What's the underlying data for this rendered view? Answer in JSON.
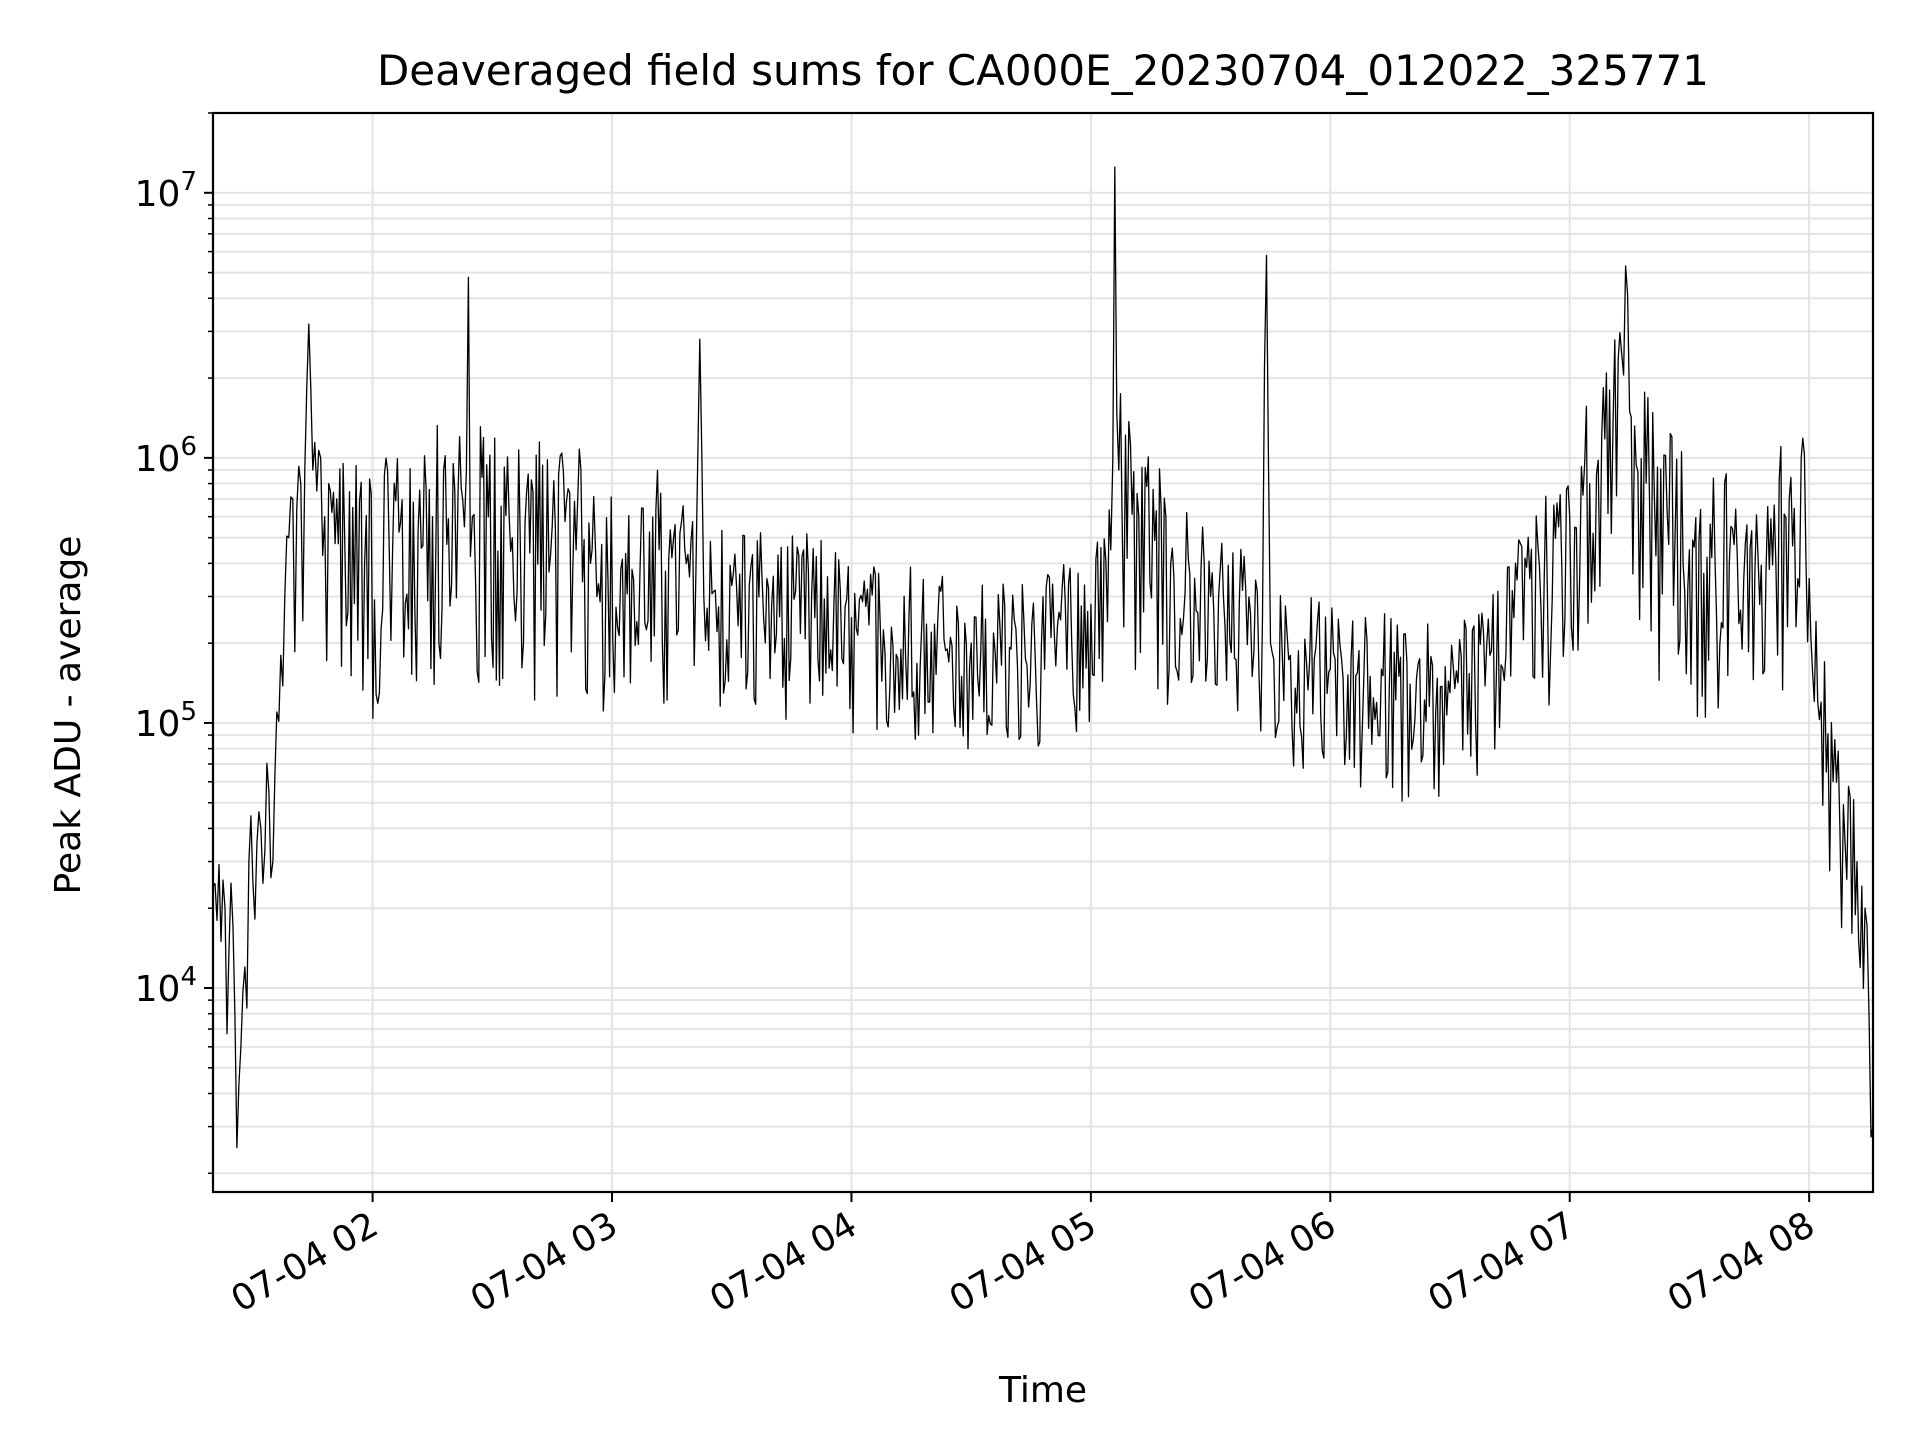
{
  "chart_data": {
    "type": "line",
    "title": "Deaveraged field sums for CA000E_20230704_012022_325771",
    "xlabel": "Time",
    "ylabel": "Peak ADU - average",
    "yscale": "log",
    "xlim": [
      "2023-07-04 01:20",
      "2023-07-04 08:16"
    ],
    "ylim": [
      1700,
      20000000
    ],
    "grid": true,
    "legend": "none",
    "line_color": "#000000",
    "x_ticks": [
      {
        "time": "2023-07-04 02:00",
        "label": "07-04 02"
      },
      {
        "time": "2023-07-04 03:00",
        "label": "07-04 03"
      },
      {
        "time": "2023-07-04 04:00",
        "label": "07-04 04"
      },
      {
        "time": "2023-07-04 05:00",
        "label": "07-04 05"
      },
      {
        "time": "2023-07-04 06:00",
        "label": "07-04 06"
      },
      {
        "time": "2023-07-04 07:00",
        "label": "07-04 07"
      },
      {
        "time": "2023-07-04 08:00",
        "label": "07-04 08"
      }
    ],
    "y_ticks": [
      {
        "value": 10000,
        "base": "10",
        "exp": "4"
      },
      {
        "value": 100000,
        "base": "10",
        "exp": "5"
      },
      {
        "value": 1000000,
        "base": "10",
        "exp": "6"
      },
      {
        "value": 10000000,
        "base": "10",
        "exp": "7"
      }
    ],
    "series": [
      {
        "x": [
          "2023-07-04 01:20",
          "2023-07-04 01:21",
          "2023-07-04 01:22",
          "2023-07-04 01:23",
          "2023-07-04 01:24",
          "2023-07-04 01:25",
          "2023-07-04 01:26",
          "2023-07-04 01:27",
          "2023-07-04 01:28",
          "2023-07-04 01:29",
          "2023-07-04 01:30",
          "2023-07-04 01:31",
          "2023-07-04 01:32",
          "2023-07-04 01:33",
          "2023-07-04 01:34",
          "2023-07-04 01:35",
          "2023-07-04 01:36",
          "2023-07-04 01:37",
          "2023-07-04 01:38",
          "2023-07-04 01:39",
          "2023-07-04 01:40",
          "2023-07-04 01:41",
          "2023-07-04 01:42",
          "2023-07-04 01:43",
          "2023-07-04 01:44",
          "2023-07-04 01:45",
          "2023-07-04 01:46",
          "2023-07-04 01:47",
          "2023-07-04 01:48",
          "2023-07-04 01:49",
          "2023-07-04 01:51",
          "2023-07-04 01:53",
          "2023-07-04 01:55",
          "2023-07-04 01:58",
          "2023-07-04 02:05",
          "2023-07-04 02:15",
          "2023-07-04 02:23",
          "2023-07-04 02:24",
          "2023-07-04 02:25",
          "2023-07-04 02:35",
          "2023-07-04 02:45",
          "2023-07-04 02:55",
          "2023-07-04 03:05",
          "2023-07-04 03:15",
          "2023-07-04 03:21",
          "2023-07-04 03:22",
          "2023-07-04 03:23",
          "2023-07-04 03:30",
          "2023-07-04 03:40",
          "2023-07-04 03:50",
          "2023-07-04 04:00",
          "2023-07-04 04:10",
          "2023-07-04 04:20",
          "2023-07-04 04:30",
          "2023-07-04 04:40",
          "2023-07-04 04:50",
          "2023-07-04 05:00",
          "2023-07-04 05:05",
          "2023-07-04 05:06",
          "2023-07-04 05:07",
          "2023-07-04 05:12",
          "2023-07-04 05:20",
          "2023-07-04 05:30",
          "2023-07-04 05:40",
          "2023-07-04 05:43",
          "2023-07-04 05:44",
          "2023-07-04 05:45",
          "2023-07-04 05:50",
          "2023-07-04 06:00",
          "2023-07-04 06:10",
          "2023-07-04 06:20",
          "2023-07-04 06:30",
          "2023-07-04 06:40",
          "2023-07-04 06:50",
          "2023-07-04 07:00",
          "2023-07-04 07:05",
          "2023-07-04 07:08",
          "2023-07-04 07:10",
          "2023-07-04 07:13",
          "2023-07-04 07:14",
          "2023-07-04 07:15",
          "2023-07-04 07:20",
          "2023-07-04 07:30",
          "2023-07-04 07:40",
          "2023-07-04 07:50",
          "2023-07-04 07:55",
          "2023-07-04 07:58",
          "2023-07-04 08:00",
          "2023-07-04 08:03",
          "2023-07-04 08:06",
          "2023-07-04 08:09",
          "2023-07-04 08:12",
          "2023-07-04 08:14",
          "2023-07-04 08:15",
          "2023-07-04 08:16"
        ],
        "y": [
          24000,
          18000,
          15000,
          20000,
          14000,
          17000,
          2500,
          6000,
          12000,
          30000,
          25000,
          35000,
          40000,
          33000,
          55000,
          30000,
          110000,
          180000,
          300000,
          500000,
          700000,
          650000,
          800000,
          900000,
          3200000,
          900000,
          750000,
          1000000,
          600000,
          800000,
          700000,
          500000,
          650000,
          400000,
          450000,
          600000,
          550000,
          4800000,
          600000,
          500000,
          550000,
          450000,
          380000,
          420000,
          350000,
          2800000,
          300000,
          330000,
          280000,
          300000,
          250000,
          230000,
          220000,
          200000,
          190000,
          210000,
          280000,
          450000,
          12500000,
          900000,
          600000,
          400000,
          300000,
          260000,
          250000,
          5800000,
          200000,
          180000,
          160000,
          150000,
          140000,
          130000,
          180000,
          350000,
          600000,
          800000,
          1200000,
          1800000,
          2500000,
          5300000,
          1500000,
          700000,
          450000,
          400000,
          380000,
          700000,
          1000000,
          350000,
          120000,
          60000,
          35000,
          30000,
          20000,
          8000,
          3000
        ]
      }
    ]
  }
}
